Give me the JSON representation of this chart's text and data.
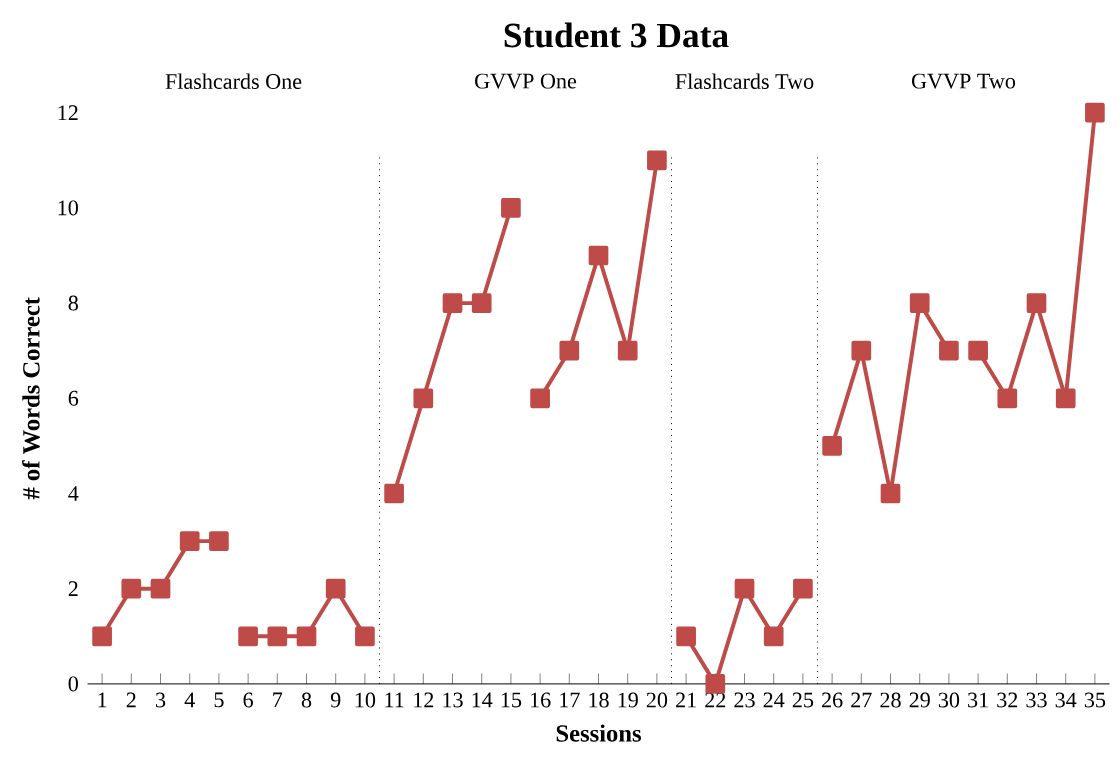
{
  "chart_data": {
    "type": "line",
    "title": "Student 3 Data",
    "xlabel": "Sessions",
    "ylabel": "# of Words Correct",
    "x": [
      1,
      2,
      3,
      4,
      5,
      6,
      7,
      8,
      9,
      10,
      11,
      12,
      13,
      14,
      15,
      16,
      17,
      18,
      19,
      20,
      21,
      22,
      23,
      24,
      25,
      26,
      27,
      28,
      29,
      30,
      31,
      32,
      33,
      34,
      35
    ],
    "xlim": [
      0.5,
      35.5
    ],
    "xticks": [
      1,
      2,
      3,
      4,
      5,
      6,
      7,
      8,
      9,
      10,
      11,
      12,
      13,
      14,
      15,
      16,
      17,
      18,
      19,
      20,
      21,
      22,
      23,
      24,
      25,
      26,
      27,
      28,
      29,
      30,
      31,
      32,
      33,
      34,
      35
    ],
    "ylim": [
      0,
      12
    ],
    "yticks": [
      0,
      2,
      4,
      6,
      8,
      10,
      12
    ],
    "series": [
      {
        "color": "#be4b48",
        "values": [
          1,
          2,
          2,
          3,
          3,
          null,
          null,
          null,
          null,
          null,
          null,
          null,
          null,
          null,
          null,
          null,
          null,
          null,
          null,
          null,
          null,
          null,
          null,
          null,
          null,
          null,
          null,
          null,
          null,
          null,
          null,
          null,
          null,
          null,
          null
        ]
      },
      {
        "color": "#be4b48",
        "values": [
          null,
          null,
          null,
          null,
          null,
          1,
          1,
          1,
          2,
          1,
          null,
          null,
          null,
          null,
          null,
          null,
          null,
          null,
          null,
          null,
          null,
          null,
          null,
          null,
          null,
          null,
          null,
          null,
          null,
          null,
          null,
          null,
          null,
          null,
          null
        ]
      },
      {
        "color": "#be4b48",
        "values": [
          null,
          null,
          null,
          null,
          null,
          null,
          null,
          null,
          null,
          null,
          4,
          6,
          8,
          8,
          10,
          null,
          null,
          null,
          null,
          null,
          null,
          null,
          null,
          null,
          null,
          null,
          null,
          null,
          null,
          null,
          null,
          null,
          null,
          null,
          null
        ]
      },
      {
        "color": "#be4b48",
        "values": [
          null,
          null,
          null,
          null,
          null,
          null,
          null,
          null,
          null,
          null,
          null,
          null,
          null,
          null,
          null,
          6,
          7,
          9,
          7,
          11,
          null,
          null,
          null,
          null,
          null,
          null,
          null,
          null,
          null,
          null,
          null,
          null,
          null,
          null,
          null
        ]
      },
      {
        "color": "#be4b48",
        "values": [
          null,
          null,
          null,
          null,
          null,
          null,
          null,
          null,
          null,
          null,
          null,
          null,
          null,
          null,
          null,
          null,
          null,
          null,
          null,
          null,
          1,
          0,
          2,
          1,
          2,
          null,
          null,
          null,
          null,
          null,
          null,
          null,
          null,
          null,
          null
        ]
      },
      {
        "color": "#be4b48",
        "values": [
          null,
          null,
          null,
          null,
          null,
          null,
          null,
          null,
          null,
          null,
          null,
          null,
          null,
          null,
          null,
          null,
          null,
          null,
          null,
          null,
          null,
          null,
          null,
          null,
          null,
          5,
          7,
          4,
          8,
          7,
          null,
          null,
          null,
          null,
          null
        ]
      },
      {
        "color": "#be4b48",
        "values": [
          null,
          null,
          null,
          null,
          null,
          null,
          null,
          null,
          null,
          null,
          null,
          null,
          null,
          null,
          null,
          null,
          null,
          null,
          null,
          null,
          null,
          null,
          null,
          null,
          null,
          null,
          null,
          null,
          null,
          null,
          7,
          6,
          8,
          6,
          12
        ]
      }
    ],
    "annotations": [
      "Flashcards One",
      "GVVP One",
      "Flashcards Two",
      "GVVP Two"
    ],
    "ref_lines": [
      {
        "axis": "x",
        "value": 10.5,
        "line_style": "dotted"
      },
      {
        "axis": "x",
        "value": 20.5,
        "line_style": "dotted"
      },
      {
        "axis": "x",
        "value": 25.5,
        "line_style": "dotted"
      }
    ],
    "marker": "square",
    "grid": false
  }
}
